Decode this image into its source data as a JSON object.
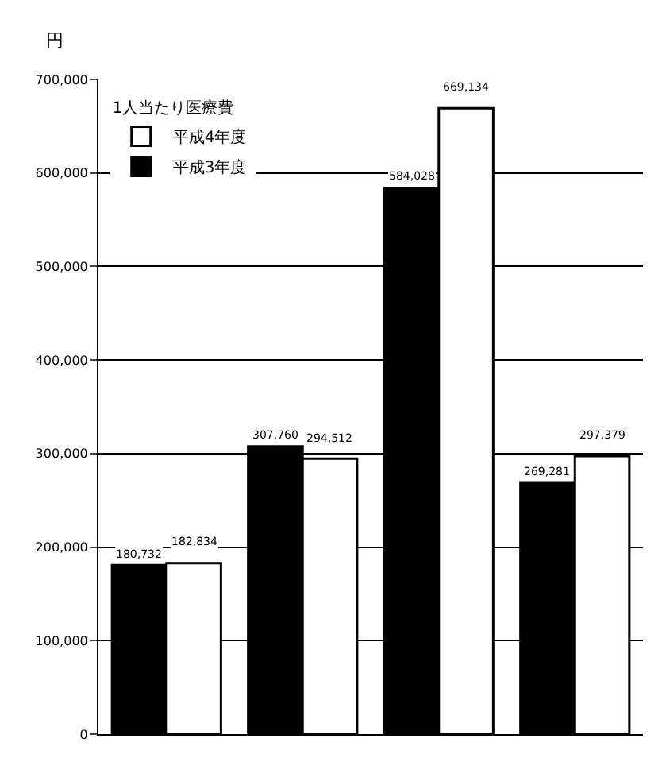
{
  "chart_data": {
    "type": "bar",
    "ylabel": "円",
    "legend_title": "1人当たり医療費",
    "categories": [
      null,
      null,
      null,
      null
    ],
    "series": [
      {
        "name": "平成3年度",
        "color": "#000000",
        "values": [
          180732,
          307760,
          584028,
          269281
        ],
        "value_labels": [
          "180,732",
          "307,760",
          "584,028",
          "269,281"
        ]
      },
      {
        "name": "平成4年度",
        "color": "#ffffff",
        "values": [
          182834,
          294512,
          669134,
          297379
        ],
        "value_labels": [
          "182,834",
          "294,512",
          "669,134",
          "297,379"
        ]
      }
    ],
    "ylim": [
      0,
      700000
    ],
    "yticks": [
      0,
      {
        "value": 100000,
        "label": "100,000"
      },
      {
        "value": 200000,
        "label": "200,000"
      },
      {
        "value": 300000,
        "label": "300,000"
      },
      {
        "value": 400000,
        "label": "400,000"
      },
      {
        "value": 500000,
        "label": "500,000"
      },
      {
        "value": 600000,
        "label": "600,000"
      },
      {
        "value": 700000,
        "label": "700,000"
      }
    ],
    "grid": "y",
    "legend": "top left"
  }
}
